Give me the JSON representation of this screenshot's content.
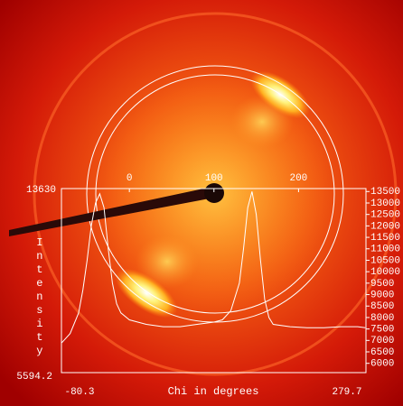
{
  "chart_data": {
    "type": "line",
    "xlabel": "Chi in degrees",
    "ylabel": "Intensity",
    "x": [
      -80,
      -70,
      -60,
      -55,
      -50,
      -45,
      -40,
      -35,
      -30,
      -25,
      -20,
      -15,
      -10,
      0,
      10,
      20,
      40,
      60,
      80,
      100,
      110,
      120,
      130,
      135,
      140,
      145,
      150,
      155,
      160,
      165,
      170,
      190,
      210,
      230,
      250,
      270,
      279
    ],
    "series": [
      {
        "color": "#ffffff",
        "values": [
          6900,
          7300,
          8200,
          9200,
          10500,
          12000,
          13000,
          13400,
          12800,
          11000,
          9500,
          8600,
          8200,
          7900,
          7800,
          7700,
          7600,
          7600,
          7700,
          7800,
          7900,
          8300,
          9500,
          11000,
          12800,
          13500,
          12500,
          10500,
          8800,
          8000,
          7700,
          7600,
          7550,
          7550,
          7600,
          7600,
          7550
        ]
      }
    ],
    "xlim": [
      -80.3,
      279.7
    ],
    "xticks": [
      0,
      100,
      200
    ],
    "ylim": [
      5594.2,
      13630
    ],
    "y2ticks": [
      6000,
      6500,
      7000,
      7500,
      8000,
      8500,
      9000,
      9500,
      10000,
      10500,
      11000,
      11500,
      12000,
      12500,
      13000,
      13500
    ]
  }
}
